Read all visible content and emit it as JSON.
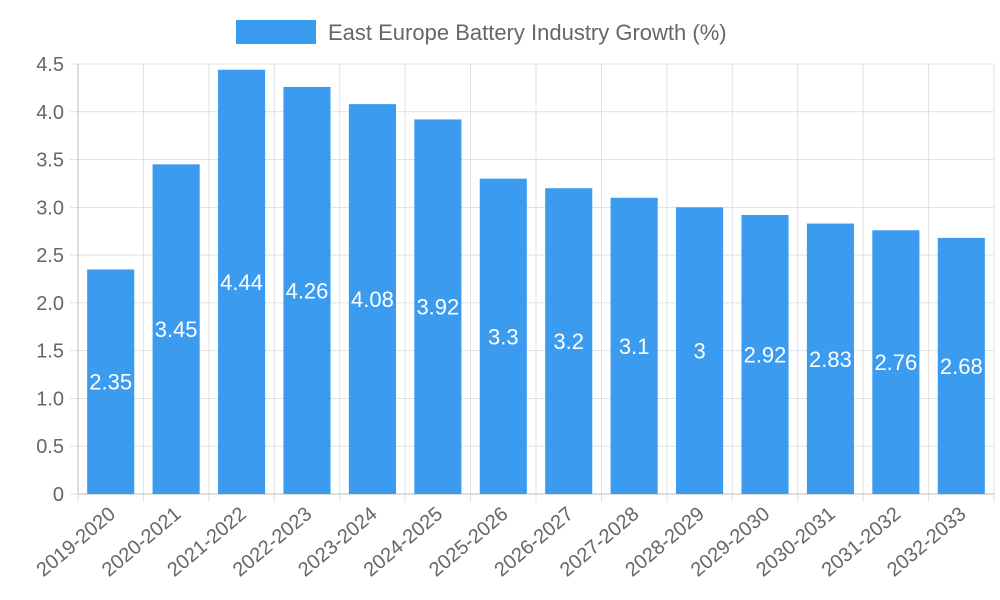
{
  "chart_data": {
    "type": "bar",
    "title": "",
    "xlabel": "",
    "ylabel": "",
    "legend": {
      "position": "top-center",
      "entries": [
        "East Europe Battery Industry Growth (%)"
      ]
    },
    "grid": true,
    "ylim": [
      0,
      4.5
    ],
    "yticks": [
      0,
      0.5,
      1.0,
      1.5,
      2.0,
      2.5,
      3.0,
      3.5,
      4.0,
      4.5
    ],
    "ytick_labels": [
      "0",
      "0.5",
      "1.0",
      "1.5",
      "2.0",
      "2.5",
      "3.0",
      "3.5",
      "4.0",
      "4.5"
    ],
    "categories": [
      "2019-2020",
      "2020-2021",
      "2021-2022",
      "2022-2023",
      "2023-2024",
      "2024-2025",
      "2025-2026",
      "2026-2027",
      "2027-2028",
      "2028-2029",
      "2029-2030",
      "2030-2031",
      "2031-2032",
      "2032-2033"
    ],
    "series": [
      {
        "name": "East Europe Battery Industry Growth (%)",
        "color": "#3a9bef",
        "values": [
          2.35,
          3.45,
          4.44,
          4.26,
          4.08,
          3.92,
          3.3,
          3.2,
          3.1,
          3,
          2.92,
          2.83,
          2.76,
          2.68
        ],
        "labels": [
          "2.35",
          "3.45",
          "4.44",
          "4.26",
          "4.08",
          "3.92",
          "3.3",
          "3.2",
          "3.1",
          "3",
          "2.92",
          "2.83",
          "2.76",
          "2.68"
        ]
      }
    ]
  }
}
